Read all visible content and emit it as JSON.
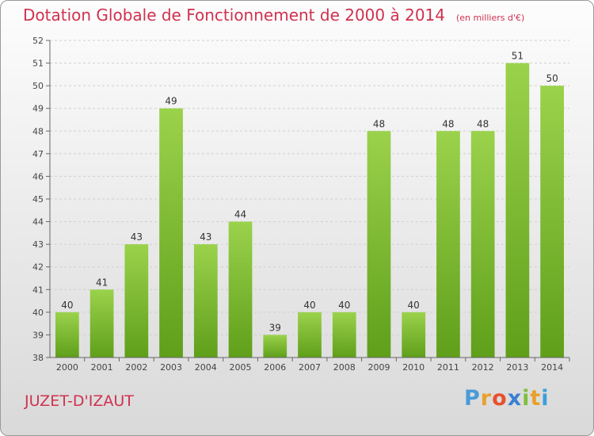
{
  "title": "Dotation Globale de Fonctionnement de 2000 à 2014",
  "subtitle": "(en milliers d'€)",
  "commune": "JUZET-D'IZAUT",
  "logo": {
    "letters": [
      "P",
      "r",
      "o",
      "x",
      "i",
      "t",
      "i"
    ],
    "colors": [
      "#4a9ad8",
      "#e8a02c",
      "#e8502c",
      "#3a7fd0",
      "#7fbf3f",
      "#e8a02c",
      "#3aa0d8"
    ]
  },
  "chart_data": {
    "type": "bar",
    "title": "Dotation Globale de Fonctionnement de 2000 à 2014",
    "subtitle": "(en milliers d'€)",
    "categories": [
      "2000",
      "2001",
      "2002",
      "2003",
      "2004",
      "2005",
      "2006",
      "2007",
      "2008",
      "2009",
      "2010",
      "2011",
      "2012",
      "2013",
      "2014"
    ],
    "values": [
      40,
      41,
      43,
      49,
      43,
      44,
      39,
      40,
      40,
      48,
      40,
      48,
      48,
      51,
      50
    ],
    "ylim": [
      38,
      52
    ],
    "yticks": [
      38,
      39,
      40,
      41,
      42,
      43,
      44,
      45,
      46,
      47,
      48,
      49,
      50,
      51,
      52
    ],
    "grid": true,
    "bar_color": "#7cb92c"
  }
}
